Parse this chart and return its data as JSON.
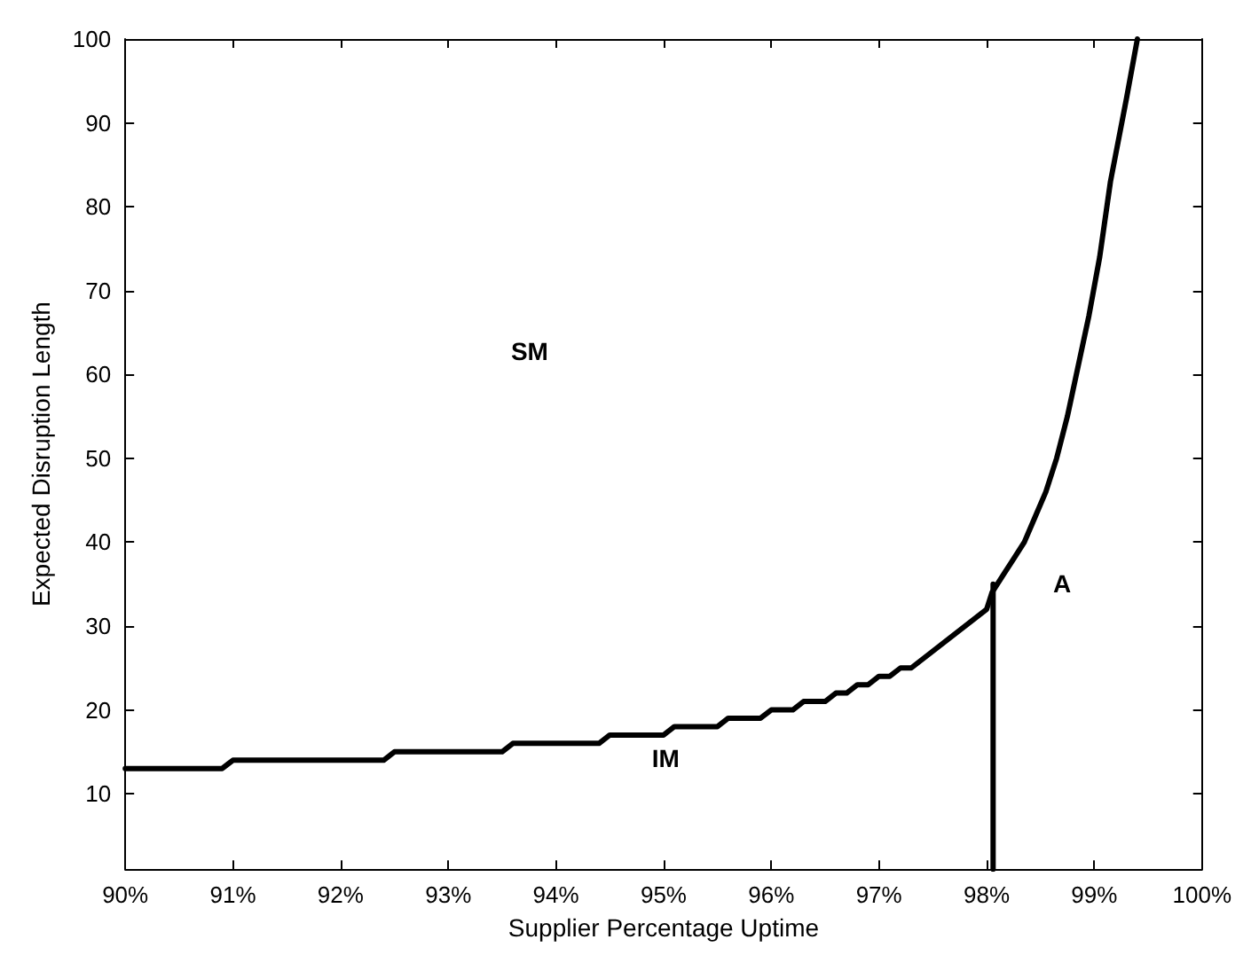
{
  "chart_data": {
    "type": "line",
    "xlabel": "Supplier Percentage Uptime",
    "ylabel": "Expected Disruption Length",
    "xlim": [
      90,
      100
    ],
    "ylim": [
      1,
      100
    ],
    "xticks": [
      {
        "value": 90,
        "label": "90%"
      },
      {
        "value": 91,
        "label": "91%"
      },
      {
        "value": 92,
        "label": "92%"
      },
      {
        "value": 93,
        "label": "93%"
      },
      {
        "value": 94,
        "label": "94%"
      },
      {
        "value": 95,
        "label": "95%"
      },
      {
        "value": 96,
        "label": "96%"
      },
      {
        "value": 97,
        "label": "97%"
      },
      {
        "value": 98,
        "label": "98%"
      },
      {
        "value": 99,
        "label": "99%"
      },
      {
        "value": 100,
        "label": "100%"
      }
    ],
    "yticks": [
      10,
      20,
      30,
      40,
      50,
      60,
      70,
      80,
      90,
      100
    ],
    "grid": false,
    "marker": "none",
    "line_style": "solid",
    "series": [
      {
        "color": "#000000",
        "x": [
          90,
          90.9,
          91,
          92.4,
          92.5,
          93.5,
          93.6,
          94.4,
          94.5,
          95.0,
          95.1,
          95.5,
          95.6,
          95.9,
          96.0,
          96.2,
          96.3,
          96.5,
          96.6,
          96.7,
          96.8,
          96.9,
          97.0,
          97.1,
          97.2,
          97.3,
          98.0,
          98.05,
          98.15,
          98.25,
          98.35,
          98.45,
          98.55,
          98.65,
          98.75,
          98.85,
          98.95,
          99.05,
          99.15,
          99.3,
          99.4
        ],
        "values": [
          13,
          13,
          14,
          14,
          15,
          15,
          16,
          16,
          17,
          17,
          18,
          18,
          19,
          19,
          20,
          20,
          21,
          21,
          22,
          22,
          23,
          23,
          24,
          24,
          25,
          25,
          32,
          34,
          36,
          38,
          40,
          43,
          46,
          50,
          55,
          61,
          67,
          74,
          83,
          93,
          100
        ]
      },
      {
        "color": "#000000",
        "x": [
          98.06,
          98.06
        ],
        "values": [
          1,
          35
        ]
      }
    ],
    "annotations": [
      "SM",
      "IM",
      "A"
    ]
  }
}
